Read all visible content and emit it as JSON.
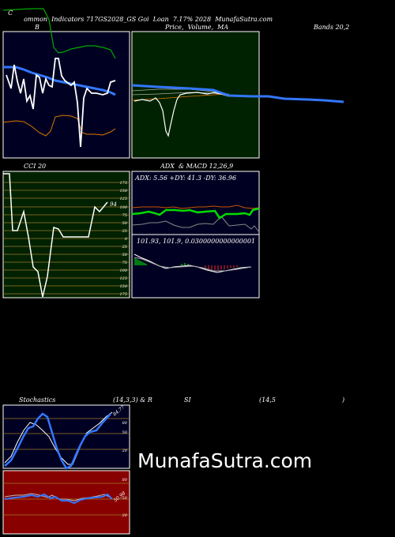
{
  "header": {
    "title": "Common Indicators 717GS2028_GS Goi Loan 7.17% 2028 MunafaSutra.com",
    "title_c": "C",
    "title_rest": "ommon  Indicators 717GS2028_GS Goi  Loan  7.17% 2028  MunafaSutra.com"
  },
  "panels": {
    "bollinger": {
      "label_b": "B",
      "label_mid": "Price,  Volume,  MA",
      "label_right": "Bands 20,2",
      "colors": {
        "bg": "#000022",
        "price": "#ffffff",
        "band": "#3377ff",
        "upper": "#00aa00",
        "lower": "#dd7700"
      }
    },
    "price_ma": {
      "colors": {
        "bg": "#002200",
        "band": "#3377ff",
        "price": "#ffffff"
      }
    },
    "cci": {
      "label": "CCI 20",
      "value_label": "94",
      "ticks": [
        "175",
        "150",
        "125",
        "100",
        "75",
        "50",
        "25",
        "0",
        "25",
        "50",
        "75",
        "100",
        "125",
        "150",
        "175"
      ],
      "colors": {
        "bg": "#002200",
        "grid": "#a07a2a",
        "line": "#ffffff"
      }
    },
    "adx_macd": {
      "label": "ADX  & MACD 12,26,9",
      "adx_readout": "ADX: 5.56  +DY: 41.3 -DY: 36.96",
      "macd_readout": "101.93,  101.9,  0.0300000000000001",
      "colors": {
        "bg": "#000022",
        "adx": "#00dd00",
        "plus_di": "#cc5500",
        "minus_di": "#888888",
        "hist_pos": "#00cc00",
        "hist_neg": "#cc2222"
      }
    },
    "stochastics": {
      "label_left": "Stochastics",
      "label_mid": "(14,3,3) & R",
      "label_si": "SI",
      "label_rsi_params": "(14,5",
      "label_close": ")",
      "ticks": [
        "80",
        "50",
        "20"
      ],
      "value_label": "84.77",
      "colors": {
        "bg": "#000022",
        "k": "#3377ff",
        "d": "#ffffff",
        "grid": "#a07a2a"
      }
    },
    "rsi": {
      "ticks": [
        "80",
        "50",
        "20"
      ],
      "value_label": "50.98",
      "colors": {
        "bg": "#880000",
        "line": "#3377ff",
        "grid": "#a07a2a"
      }
    }
  },
  "watermark": "MunafaSutra.com"
}
